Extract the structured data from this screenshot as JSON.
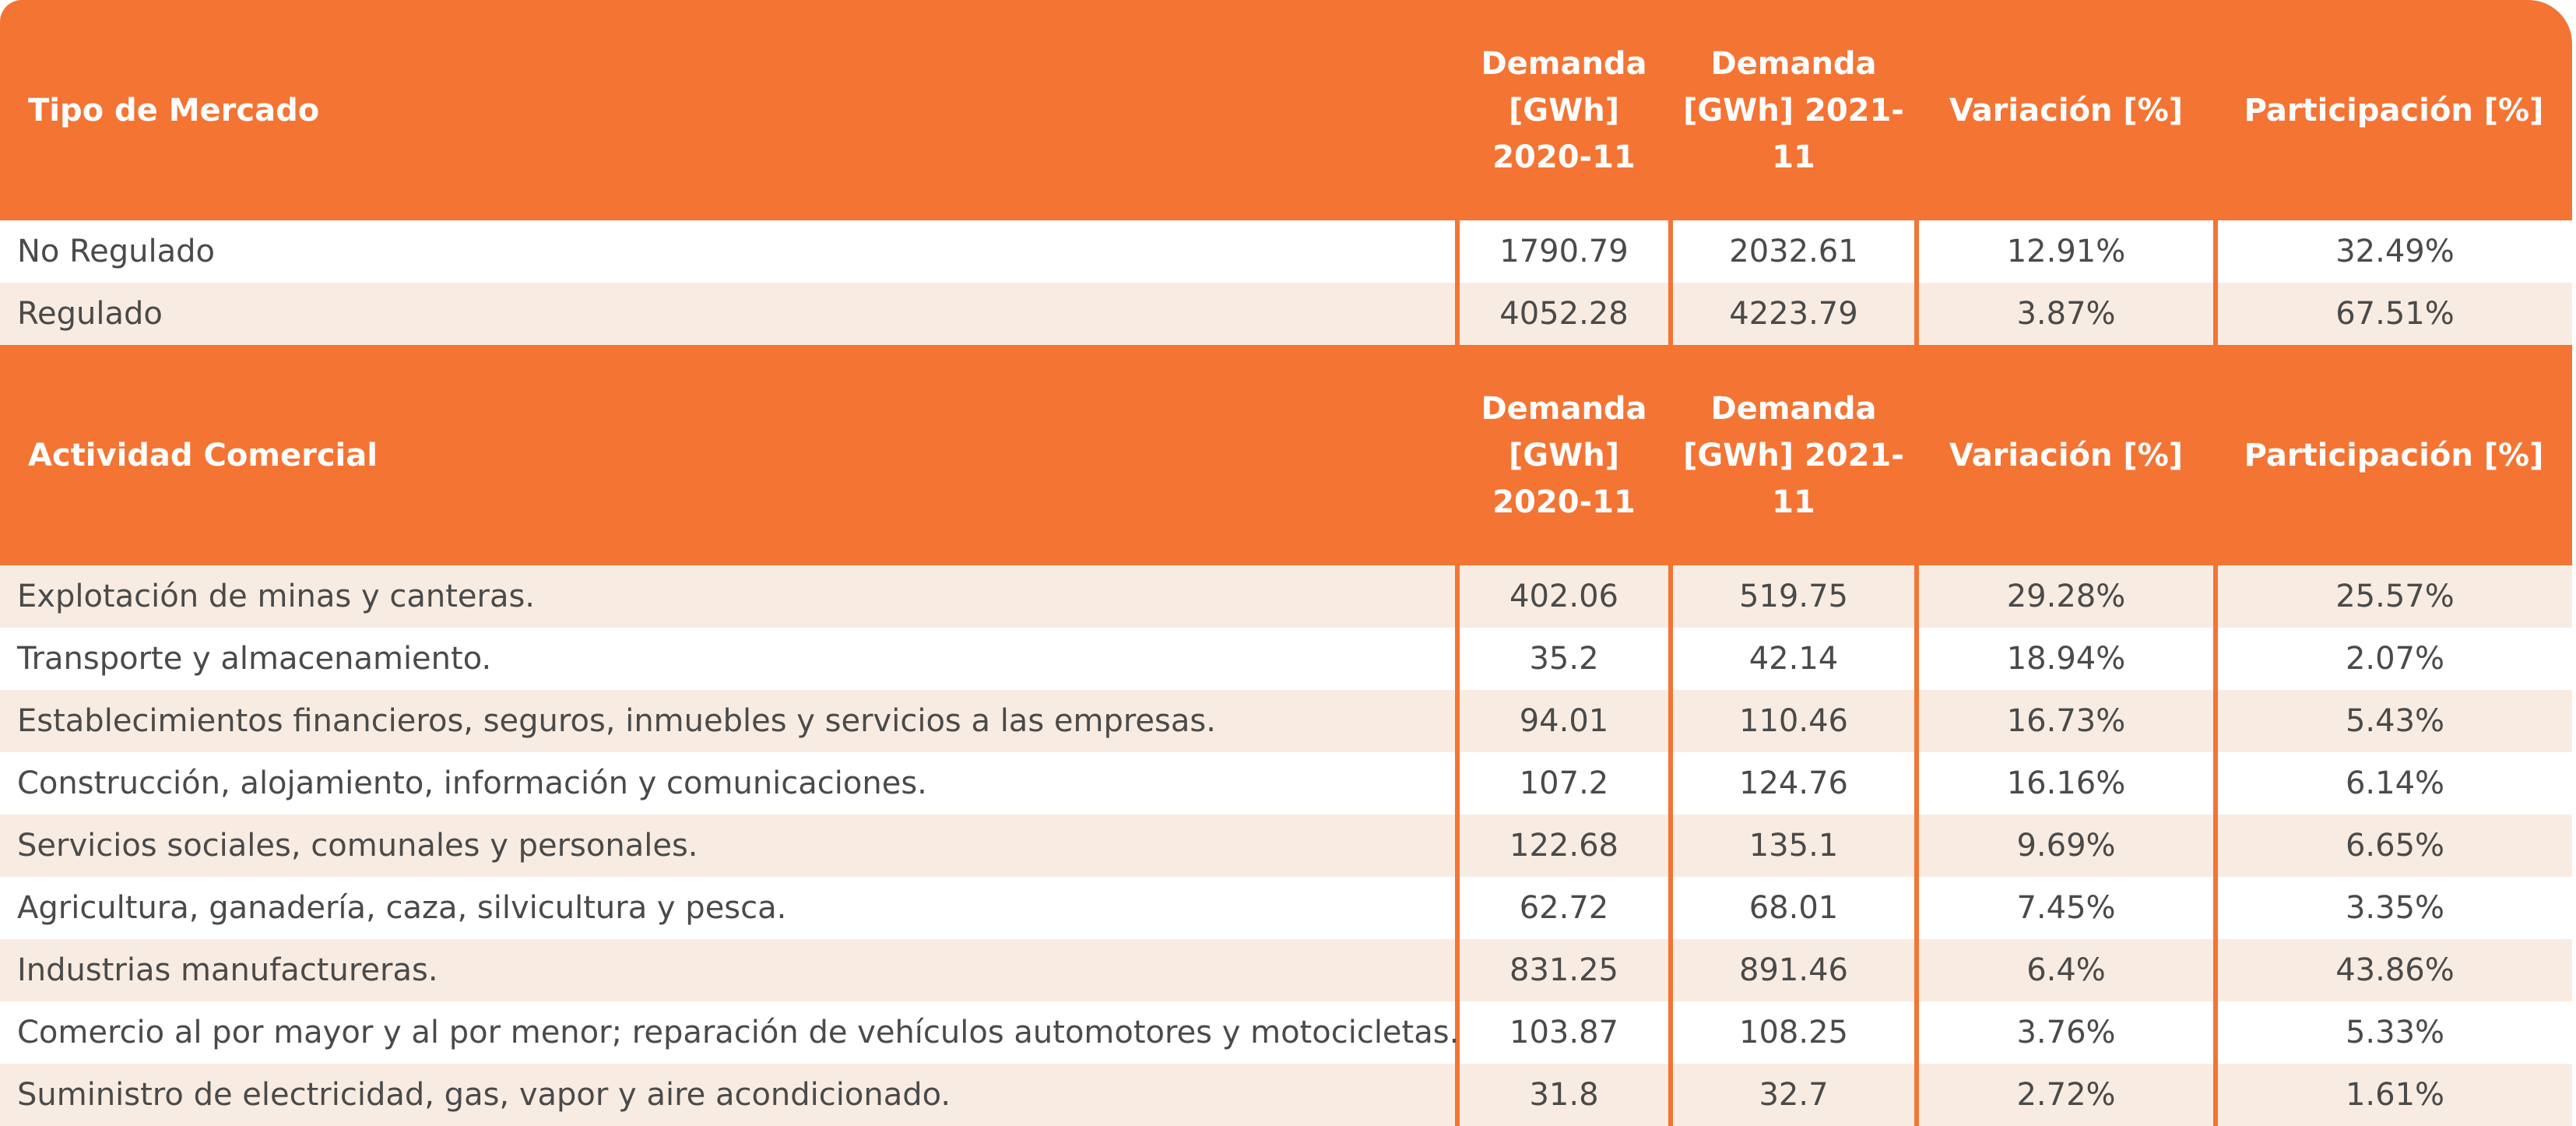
{
  "colors": {
    "header_bg": "#F47434",
    "header_text": "#ffffff",
    "stripe_bg": "#F8ECE2",
    "row_text": "#4a4a4a",
    "divider": "#F47434"
  },
  "market": {
    "header": {
      "label": "Tipo de Mercado",
      "demand_2020": "Demanda [GWh] 2020-11",
      "demand_2021": "Demanda [GWh] 2021-11",
      "variation": "Variación [%]",
      "share": "Participación [%]"
    },
    "rows": [
      {
        "label": "No Regulado",
        "demand_2020": "1790.79",
        "demand_2021": "2032.61",
        "variation": "12.91%",
        "share": "32.49%"
      },
      {
        "label": "Regulado",
        "demand_2020": "4052.28",
        "demand_2021": "4223.79",
        "variation": "3.87%",
        "share": "67.51%"
      }
    ]
  },
  "activity": {
    "header": {
      "label": "Actividad Comercial",
      "demand_2020": "Demanda [GWh] 2020-11",
      "demand_2021": "Demanda [GWh] 2021-11",
      "variation": "Variación [%]",
      "share": "Participación [%]"
    },
    "rows": [
      {
        "label": "Explotación de minas y canteras.",
        "demand_2020": "402.06",
        "demand_2021": "519.75",
        "variation": "29.28%",
        "share": "25.57%"
      },
      {
        "label": "Transporte y almacenamiento.",
        "demand_2020": "35.2",
        "demand_2021": "42.14",
        "variation": "18.94%",
        "share": "2.07%"
      },
      {
        "label": "Establecimientos financieros, seguros, inmuebles y servicios a las empresas.",
        "demand_2020": "94.01",
        "demand_2021": "110.46",
        "variation": "16.73%",
        "share": "5.43%"
      },
      {
        "label": "Construcción, alojamiento, información y comunicaciones.",
        "demand_2020": "107.2",
        "demand_2021": "124.76",
        "variation": "16.16%",
        "share": "6.14%"
      },
      {
        "label": "Servicios sociales, comunales y personales.",
        "demand_2020": "122.68",
        "demand_2021": "135.1",
        "variation": "9.69%",
        "share": "6.65%"
      },
      {
        "label": "Agricultura, ganadería, caza, silvicultura y pesca.",
        "demand_2020": "62.72",
        "demand_2021": "68.01",
        "variation": "7.45%",
        "share": "3.35%"
      },
      {
        "label": "Industrias manufactureras.",
        "demand_2020": "831.25",
        "demand_2021": "891.46",
        "variation": "6.4%",
        "share": "43.86%"
      },
      {
        "label": "Comercio al por mayor y al por menor; reparación de vehículos automotores y motocicletas.",
        "demand_2020": "103.87",
        "demand_2021": "108.25",
        "variation": "3.76%",
        "share": "5.33%"
      },
      {
        "label": "Suministro de electricidad, gas, vapor y aire acondicionado.",
        "demand_2020": "31.8",
        "demand_2021": "32.7",
        "variation": "2.72%",
        "share": "1.61%"
      }
    ]
  }
}
